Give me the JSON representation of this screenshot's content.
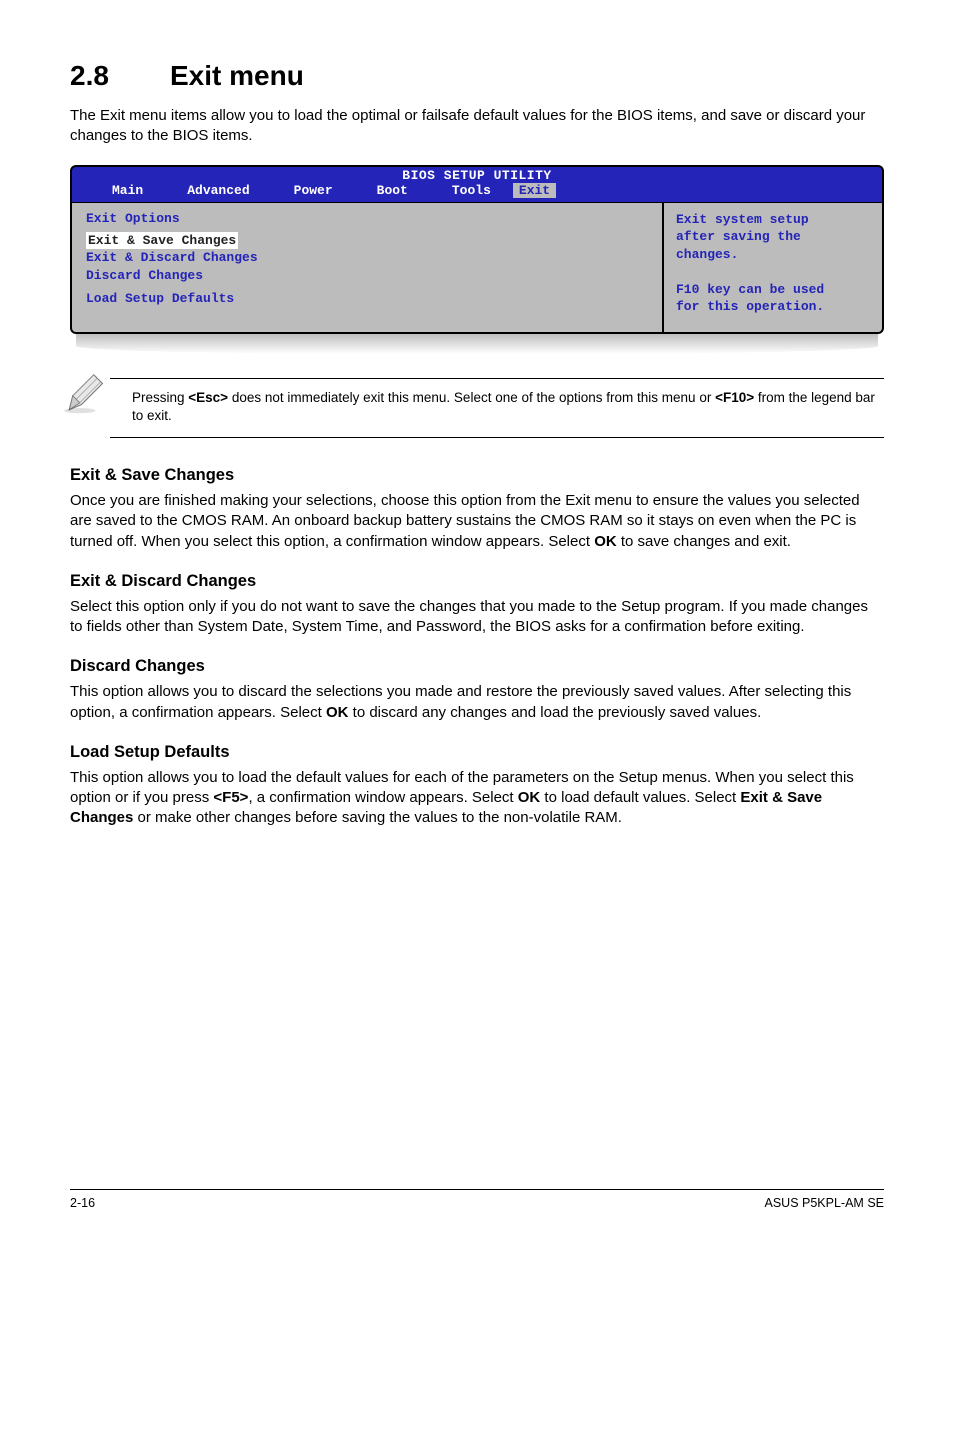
{
  "heading": {
    "num": "2.8",
    "title": "Exit menu"
  },
  "intro": "The Exit menu items allow you to load the optimal or failsafe default values for the BIOS items, and save or discard your changes to the BIOS items.",
  "bios": {
    "title": "BIOS SETUP UTILITY",
    "tabs": [
      "Main",
      "Advanced",
      "Power",
      "Boot",
      "Tools",
      "Exit"
    ],
    "active_tab_index": 5,
    "tab_bg": "#2424b8",
    "tab_fg": "#ffffff",
    "active_bg": "#bcbcbc",
    "active_fg": "#2424b8",
    "body_bg": "#bcbcbc",
    "body_fg": "#2424b8",
    "left": {
      "header": "Exit Options",
      "items": [
        {
          "label": "Exit & Save Changes",
          "selected": true
        },
        {
          "label": "Exit & Discard Changes",
          "selected": false
        },
        {
          "label": "Discard Changes",
          "selected": false
        }
      ],
      "footer_item": "Load Setup Defaults"
    },
    "right_lines": [
      "Exit system setup",
      "after saving the",
      "changes.",
      "",
      "F10 key can be used",
      "for this operation."
    ]
  },
  "note": "Pressing <Esc> does not immediately exit this menu. Select one of the options from this menu or <F10> from the legend bar to exit.",
  "note_bold": {
    "esc": "<Esc>",
    "f10": "<F10>"
  },
  "sections": [
    {
      "title": "Exit & Save Changes",
      "body": "Once you are finished making your selections, choose this option from the Exit menu to ensure the values you selected are saved to the CMOS RAM. An onboard backup battery sustains the CMOS RAM so it stays on even when the PC is turned off. When you select this option, a confirmation window appears. Select OK to save changes and exit.",
      "bold": [
        "OK"
      ]
    },
    {
      "title": "Exit & Discard Changes",
      "body": "Select this option only if you do not want to save the changes that you made to the Setup program. If you made changes to fields other than System Date, System Time, and Password, the BIOS asks for a confirmation before exiting.",
      "bold": []
    },
    {
      "title": "Discard Changes",
      "body": "This option allows you to discard the selections you made and restore the previously saved values. After selecting this option, a confirmation appears. Select OK to discard any changes and load the previously saved values.",
      "bold": [
        "OK"
      ]
    },
    {
      "title": "Load Setup Defaults",
      "body": "This option allows you to load the default values for each of the parameters on the Setup menus. When you select this option or if you press <F5>, a confirmation window appears. Select OK to load default values. Select Exit & Save Changes or make other changes before saving the values to the non-volatile RAM.",
      "bold": [
        "<F5>",
        "OK",
        "Exit & Save Changes"
      ]
    }
  ],
  "footer": {
    "left": "2-16",
    "right": "ASUS P5KPL-AM SE"
  }
}
